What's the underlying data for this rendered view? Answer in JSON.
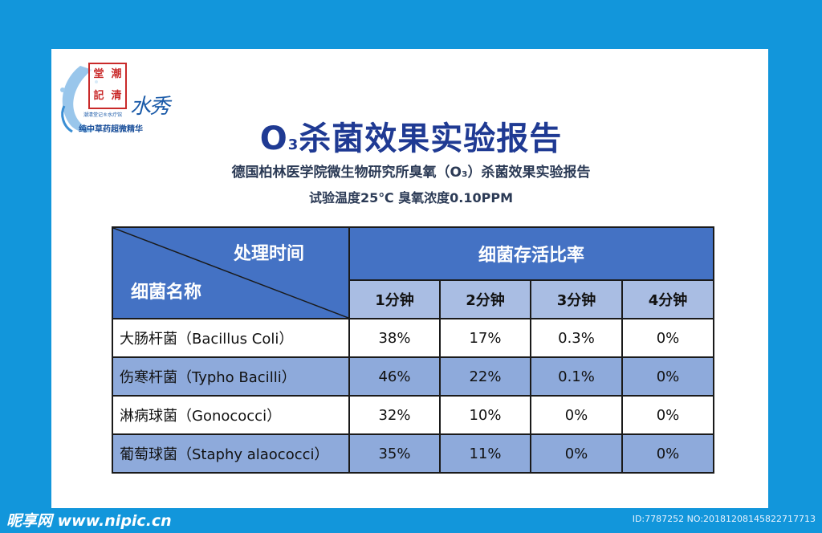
{
  "logo": {
    "seal_chars": [
      "堂",
      "潮",
      "記",
      "清"
    ],
    "script": "水秀",
    "small_text": "潮清堂记®水疗馆",
    "tagline": "纯中草药超微精华"
  },
  "title": {
    "prefix": "O",
    "subscript": "3",
    "rest": "杀菌效果实验报告"
  },
  "subtitle": "德国柏林医学院微生物研究所臭氧（O₃）杀菌效果实验报告",
  "conditions": "试验温度25℃ 臭氧浓度0.10PPM",
  "table": {
    "header_time": "处理时间",
    "header_name": "细菌名称",
    "header_survival": "细菌存活比率",
    "minutes": [
      "1分钟",
      "2分钟",
      "3分钟",
      "4分钟"
    ],
    "rows": [
      {
        "name": "大肠杆菌（Bacillus Coli）",
        "values": [
          "38%",
          "17%",
          "0.3%",
          "0%"
        ]
      },
      {
        "name": "伤寒杆菌（Typho Bacilli）",
        "values": [
          "46%",
          "22%",
          "0.1%",
          "0%"
        ]
      },
      {
        "name": "淋病球菌（Gonococci）",
        "values": [
          "32%",
          "10%",
          "0%",
          "0%"
        ]
      },
      {
        "name": "葡萄球菌（Staphy alaococci）",
        "values": [
          "35%",
          "11%",
          "0%",
          "0%"
        ]
      }
    ]
  },
  "watermark": {
    "left": "昵享网 www.nipic.cn",
    "right": "ID:7787252 NO:20181208145822717713"
  },
  "colors": {
    "background": "#1296db",
    "header_blue": "#4472c4",
    "row_alt": "#8eaadb",
    "title": "#1f3a93"
  }
}
